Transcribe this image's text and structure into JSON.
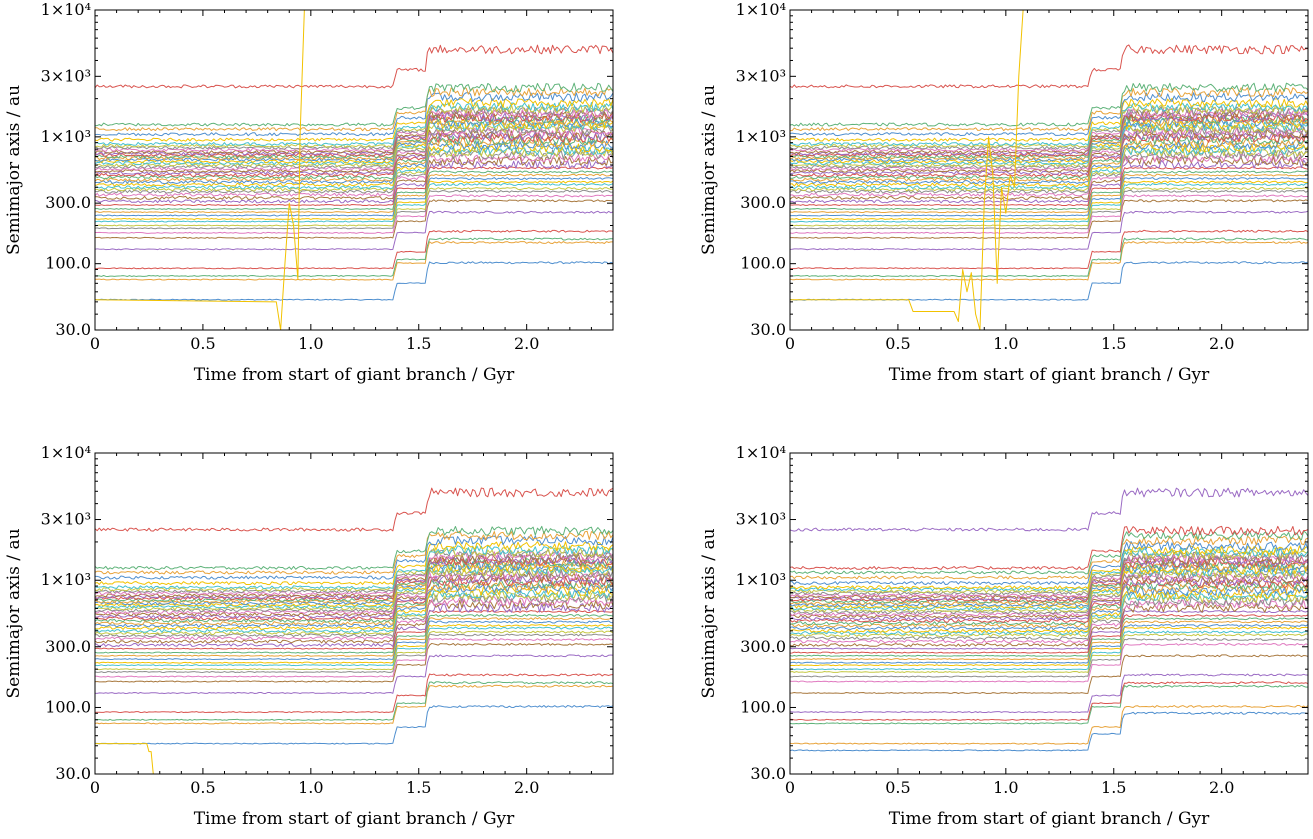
{
  "chart_data": [
    {
      "type": "line",
      "panel": "top-left",
      "xlabel": "Time from start of giant branch / Gyr",
      "ylabel": "Semimajor axis / au",
      "xlim": [
        0,
        2.4
      ],
      "ylim": [
        30,
        10000
      ],
      "yscale": "log",
      "x_ticks": [
        0,
        0.5,
        1.0,
        1.5,
        2.0
      ],
      "x_tick_labels": [
        "0",
        "0.5",
        "1.0",
        "1.5",
        "2.0"
      ],
      "y_ticks": [
        30,
        100,
        300,
        1000,
        3000,
        10000
      ],
      "y_tick_labels": [
        "30.0",
        "100.0",
        "300.0",
        "1×10³",
        "3×10³",
        "1×10⁴"
      ],
      "grid": false,
      "legend": "none",
      "step_times_gyr": [
        1.38,
        1.53
      ],
      "colors": [
        "#4f8fcf",
        "#e8a33a",
        "#5fb37a",
        "#d9544f",
        "#9b6bc4",
        "#a8783e",
        "#e07ac0",
        "#8d8d8d",
        "#c5c843",
        "#46c1d0",
        "#f2c200"
      ],
      "initial_semimajor_axes_au": [
        52,
        75,
        80,
        92,
        130,
        160,
        175,
        190,
        200,
        215,
        225,
        240,
        255,
        270,
        290,
        310,
        330,
        350,
        370,
        385,
        400,
        420,
        440,
        460,
        480,
        500,
        520,
        540,
        560,
        580,
        600,
        620,
        640,
        660,
        680,
        700,
        720,
        740,
        760,
        790,
        820,
        850,
        880,
        950,
        1050,
        1150,
        1250,
        2500
      ],
      "anomalies": [
        {
          "color": "#f2c200",
          "points": [
            [
              0,
              52
            ],
            [
              0.84,
              50
            ],
            [
              0.86,
              30
            ],
            [
              0.88,
              100
            ],
            [
              0.9,
              300
            ],
            [
              0.92,
              200
            ],
            [
              0.94,
              75
            ],
            [
              0.95,
              1000
            ],
            [
              0.97,
              10000
            ]
          ]
        }
      ]
    },
    {
      "type": "line",
      "panel": "top-right",
      "xlabel": "Time from start of giant branch / Gyr",
      "ylabel": "Semimajor axis / au",
      "xlim": [
        0,
        2.4
      ],
      "ylim": [
        30,
        10000
      ],
      "yscale": "log",
      "x_ticks": [
        0,
        0.5,
        1.0,
        1.5,
        2.0
      ],
      "x_tick_labels": [
        "0",
        "0.5",
        "1.0",
        "1.5",
        "2.0"
      ],
      "y_ticks": [
        30,
        100,
        300,
        1000,
        3000,
        10000
      ],
      "y_tick_labels": [
        "30.0",
        "100.0",
        "300.0",
        "1×10³",
        "3×10³",
        "1×10⁴"
      ],
      "grid": false,
      "legend": "none",
      "step_times_gyr": [
        1.38,
        1.53
      ],
      "colors": [
        "#4f8fcf",
        "#e8a33a",
        "#5fb37a",
        "#d9544f",
        "#9b6bc4",
        "#a8783e",
        "#e07ac0",
        "#8d8d8d",
        "#c5c843",
        "#46c1d0",
        "#f2c200"
      ],
      "initial_semimajor_axes_au": [
        52,
        75,
        80,
        92,
        130,
        160,
        175,
        190,
        200,
        215,
        225,
        240,
        255,
        270,
        290,
        310,
        330,
        350,
        370,
        385,
        400,
        420,
        440,
        460,
        480,
        500,
        520,
        540,
        560,
        580,
        600,
        620,
        640,
        660,
        680,
        700,
        720,
        740,
        760,
        790,
        820,
        850,
        880,
        950,
        1050,
        1150,
        1250,
        2500
      ],
      "anomalies": [
        {
          "color": "#f2c200",
          "points": [
            [
              0,
              52
            ],
            [
              0.55,
              52
            ],
            [
              0.57,
              42
            ],
            [
              0.76,
              42
            ],
            [
              0.78,
              35
            ],
            [
              0.8,
              90
            ],
            [
              0.82,
              60
            ],
            [
              0.84,
              85
            ],
            [
              0.86,
              40
            ],
            [
              0.88,
              30
            ],
            [
              0.9,
              300
            ],
            [
              0.92,
              1000
            ],
            [
              0.94,
              500
            ],
            [
              0.96,
              70
            ],
            [
              0.98,
              400
            ],
            [
              1.0,
              250
            ],
            [
              1.02,
              500
            ],
            [
              1.04,
              400
            ],
            [
              1.06,
              3000
            ],
            [
              1.08,
              10000
            ]
          ]
        }
      ]
    },
    {
      "type": "line",
      "panel": "bottom-left",
      "xlabel": "Time from start of giant branch / Gyr",
      "ylabel": "Semimajor axis / au",
      "xlim": [
        0,
        2.4
      ],
      "ylim": [
        30,
        10000
      ],
      "yscale": "log",
      "x_ticks": [
        0,
        0.5,
        1.0,
        1.5,
        2.0
      ],
      "x_tick_labels": [
        "0",
        "0.5",
        "1.0",
        "1.5",
        "2.0"
      ],
      "y_ticks": [
        30,
        100,
        300,
        1000,
        3000,
        10000
      ],
      "y_tick_labels": [
        "30.0",
        "100.0",
        "300.0",
        "1×10³",
        "3×10³",
        "1×10⁴"
      ],
      "grid": false,
      "legend": "none",
      "step_times_gyr": [
        1.38,
        1.53
      ],
      "colors": [
        "#4f8fcf",
        "#e8a33a",
        "#5fb37a",
        "#d9544f",
        "#9b6bc4",
        "#a8783e",
        "#e07ac0",
        "#8d8d8d",
        "#c5c843",
        "#46c1d0",
        "#f2c200"
      ],
      "initial_semimajor_axes_au": [
        52,
        75,
        80,
        92,
        130,
        160,
        175,
        190,
        200,
        215,
        225,
        240,
        255,
        270,
        290,
        310,
        330,
        350,
        370,
        385,
        400,
        420,
        440,
        460,
        480,
        500,
        520,
        540,
        560,
        580,
        600,
        620,
        640,
        660,
        680,
        700,
        720,
        740,
        760,
        790,
        820,
        850,
        880,
        950,
        1050,
        1150,
        1250,
        2500
      ],
      "anomalies": [
        {
          "color": "#f2c200",
          "points": [
            [
              0,
              52
            ],
            [
              0.24,
              52
            ],
            [
              0.25,
              45
            ],
            [
              0.26,
              45
            ],
            [
              0.27,
              30
            ]
          ]
        }
      ]
    },
    {
      "type": "line",
      "panel": "bottom-right",
      "xlabel": "Time from start of giant branch / Gyr",
      "ylabel": "Semimajor axis / au",
      "xlim": [
        0,
        2.4
      ],
      "ylim": [
        30,
        10000
      ],
      "yscale": "log",
      "x_ticks": [
        0,
        0.5,
        1.0,
        1.5,
        2.0
      ],
      "x_tick_labels": [
        "0",
        "0.5",
        "1.0",
        "1.5",
        "2.0"
      ],
      "y_ticks": [
        30,
        100,
        300,
        1000,
        3000,
        10000
      ],
      "y_tick_labels": [
        "30.0",
        "100.0",
        "300.0",
        "1×10³",
        "3×10³",
        "1×10⁴"
      ],
      "grid": false,
      "legend": "none",
      "step_times_gyr": [
        1.38,
        1.53
      ],
      "colors": [
        "#4f8fcf",
        "#e8a33a",
        "#5fb37a",
        "#d9544f",
        "#9b6bc4",
        "#a8783e",
        "#e07ac0",
        "#8d8d8d",
        "#c5c843",
        "#46c1d0",
        "#f2c200"
      ],
      "initial_semimajor_axes_au": [
        46,
        52,
        75,
        80,
        92,
        130,
        160,
        175,
        190,
        200,
        215,
        225,
        240,
        255,
        270,
        290,
        310,
        330,
        350,
        370,
        385,
        400,
        420,
        440,
        460,
        480,
        500,
        520,
        540,
        560,
        580,
        600,
        620,
        640,
        660,
        680,
        700,
        720,
        740,
        760,
        790,
        820,
        850,
        880,
        950,
        1050,
        1150,
        1250,
        2500
      ],
      "anomalies": []
    }
  ]
}
